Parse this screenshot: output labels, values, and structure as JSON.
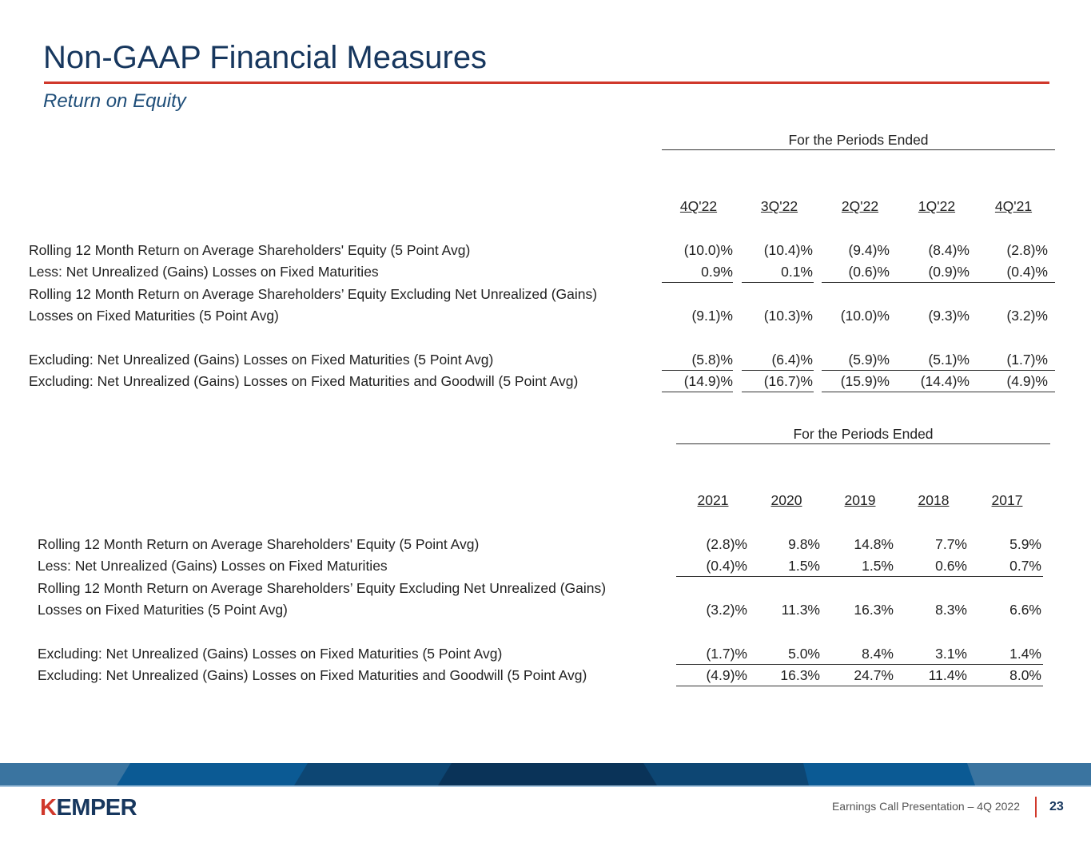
{
  "header": {
    "title": "Non-GAAP Financial Measures",
    "subtitle": "Return on Equity"
  },
  "tables": [
    {
      "group_header": "For the Periods Ended",
      "columns": [
        "4Q'22",
        "3Q'22",
        "2Q'22",
        "1Q'22",
        "4Q'21"
      ],
      "rows": [
        {
          "label": "Rolling 12 Month Return on Average Shareholders' Equity (5 Point Avg)",
          "values": [
            "(10.0)%",
            "(10.4)%",
            "(9.4)%",
            "(8.4)%",
            "(2.8)%"
          ]
        },
        {
          "label": "Less: Net Unrealized (Gains) Losses on Fixed Maturities",
          "values": [
            "0.9%",
            "0.1%",
            "(0.6)%",
            "(0.9)%",
            "(0.4)%"
          ]
        },
        {
          "label": "Rolling 12 Month Return on Average Shareholders’ Equity Excluding Net Unrealized (Gains)",
          "label2": "Losses on Fixed Maturities (5 Point Avg)",
          "values": [
            "(9.1)%",
            "(10.3)%",
            "(10.0)%",
            "(9.3)%",
            "(3.2)%"
          ]
        },
        {
          "label": "Excluding: Net Unrealized (Gains) Losses on Fixed Maturities (5 Point Avg)",
          "values": [
            "(5.8)%",
            "(6.4)%",
            "(5.9)%",
            "(5.1)%",
            "(1.7)%"
          ]
        },
        {
          "label": "Excluding: Net Unrealized (Gains) Losses on Fixed Maturities and Goodwill (5 Point Avg)",
          "values": [
            "(14.9)%",
            "(16.7)%",
            "(15.9)%",
            "(14.4)%",
            "(4.9)%"
          ]
        }
      ]
    },
    {
      "group_header": "For the Periods Ended",
      "columns": [
        "2021",
        "2020",
        "2019",
        "2018",
        "2017"
      ],
      "rows": [
        {
          "label": "Rolling 12 Month Return on Average Shareholders' Equity (5 Point Avg)",
          "values": [
            "(2.8)%",
            "9.8%",
            "14.8%",
            "7.7%",
            "5.9%"
          ]
        },
        {
          "label": "Less: Net Unrealized (Gains) Losses on Fixed Maturities",
          "values": [
            "(0.4)%",
            "1.5%",
            "1.5%",
            "0.6%",
            "0.7%"
          ]
        },
        {
          "label": "Rolling 12 Month Return on Average Shareholders’ Equity Excluding Net Unrealized (Gains)",
          "label2": "Losses on Fixed Maturities (5 Point Avg)",
          "values": [
            "(3.2)%",
            "11.3%",
            "16.3%",
            "8.3%",
            "6.6%"
          ]
        },
        {
          "label": "Excluding: Net Unrealized (Gains) Losses on Fixed Maturities (5 Point Avg)",
          "values": [
            "(1.7)%",
            "5.0%",
            "8.4%",
            "3.1%",
            "1.4%"
          ]
        },
        {
          "label": "Excluding: Net Unrealized (Gains) Losses on Fixed Maturities and Goodwill (5 Point Avg)",
          "values": [
            "(4.9)%",
            "16.3%",
            "24.7%",
            "11.4%",
            "8.0%"
          ]
        }
      ]
    }
  ],
  "footer": {
    "logo": "KEMPER",
    "presentation": "Earnings Call Presentation – 4Q 2022",
    "page": "23"
  },
  "colors": {
    "title": "#17375e",
    "accent": "#d0382b",
    "band_dark": "#0a3358",
    "band_mid": "#0b5a94",
    "band_light": "#3a74a0"
  }
}
